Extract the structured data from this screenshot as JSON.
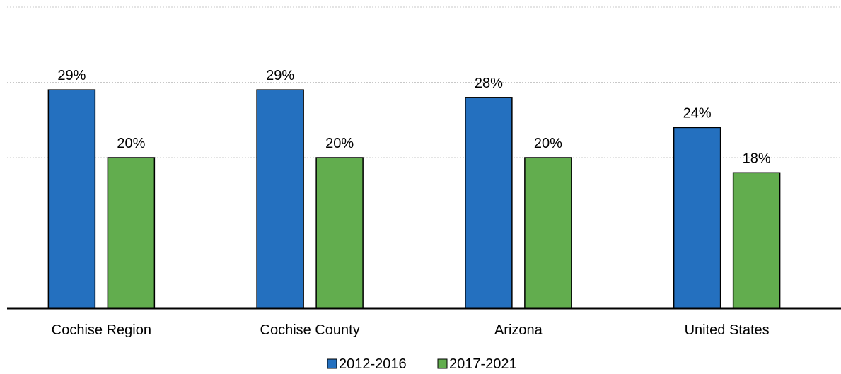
{
  "chart_data": {
    "type": "bar",
    "categories": [
      "Cochise Region",
      "Cochise County",
      "Arizona",
      "United States"
    ],
    "series": [
      {
        "name": "2012-2016",
        "color": "#2470BF",
        "values": [
          29,
          29,
          28,
          24
        ],
        "labels": [
          "29%",
          "29%",
          "28%",
          "24%"
        ]
      },
      {
        "name": "2017-2021",
        "color": "#62AD4E",
        "values": [
          20,
          20,
          20,
          18
        ],
        "labels": [
          "20%",
          "20%",
          "20%",
          "18%"
        ]
      }
    ],
    "ylim": [
      0,
      40
    ],
    "grid": true,
    "legend_position": "bottom",
    "title": "",
    "xlabel": "",
    "ylabel": ""
  }
}
